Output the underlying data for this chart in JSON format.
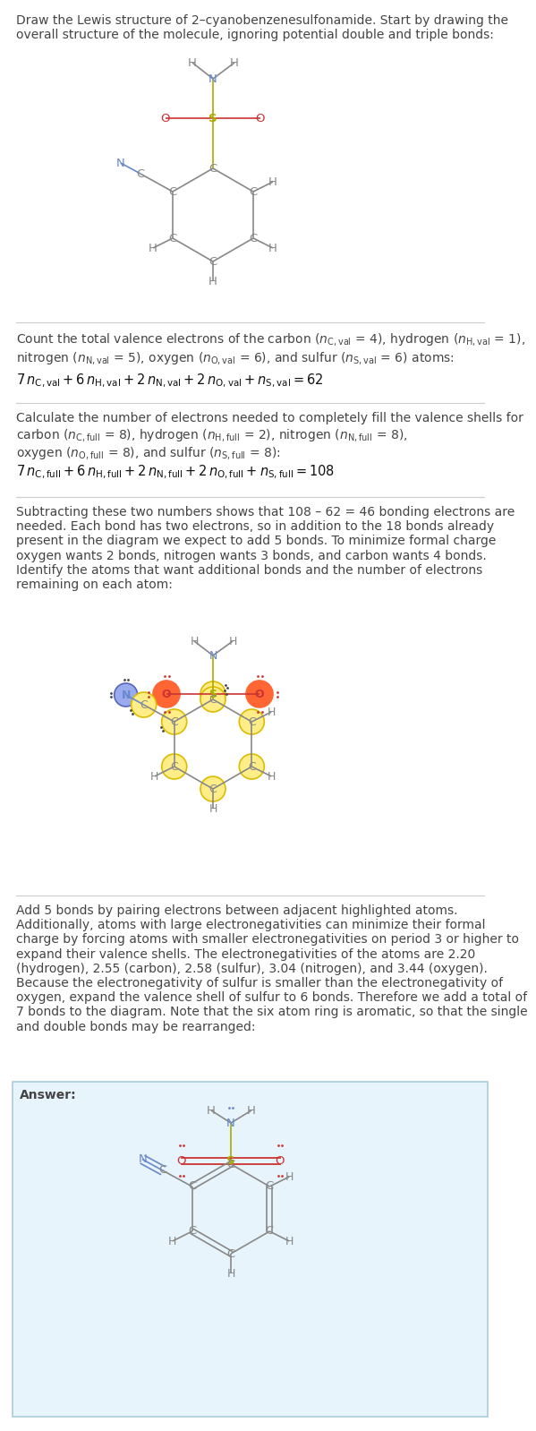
{
  "bg_color": "#ffffff",
  "text_color": "#444444",
  "C_color": "#888888",
  "N_color": "#6688cc",
  "O_color": "#cc3333",
  "S_color": "#aaaa00",
  "highlight_yellow": "#ffee88",
  "highlight_border": "#ddbb00",
  "answer_bg": "#e8f4fb",
  "answer_border": "#aaccdd",
  "divider_color": "#cccccc",
  "s1_text1": "Draw the Lewis structure of 2–cyanobenzenesulfonamide. Start by drawing the",
  "s1_text2": "overall structure of the molecule, ignoring potential double and triple bonds:",
  "s2_text1": "Count the total valence electrons of the carbon (",
  "s3_text1": "Calculate the number of electrons needed to completely fill the valence shells for",
  "s4_text": "Subtracting these two numbers shows that 108 – 62 = 46 bonding electrons are\nneeded. Each bond has two electrons, so in addition to the 18 bonds already\npresent in the diagram we expect to add 5 bonds. To minimize formal charge\noxygen wants 2 bonds, nitrogen wants 3 bonds, and carbon wants 4 bonds.\nIdentify the atoms that want additional bonds and the number of electrons\nremaining on each atom:",
  "s5_text": "Add 5 bonds by pairing electrons between adjacent highlighted atoms.\nAdditionally, atoms with large electronegativities can minimize their formal\ncharge by forcing atoms with smaller electronegativities on period 3 or higher to\nexpand their valence shells. The electronegativities of the atoms are 2.20\n(hydrogen), 2.55 (carbon), 2.58 (sulfur), 3.04 (nitrogen), and 3.44 (oxygen).\nBecause the electronegativity of sulfur is smaller than the electronegativity of\noxygen, expand the valence shell of sulfur to 6 bonds. Therefore we add a total of\n7 bonds to the diagram. Note that the six atom ring is aromatic, so that the single\nand double bonds may be rearranged:",
  "answer_label": "Answer:"
}
